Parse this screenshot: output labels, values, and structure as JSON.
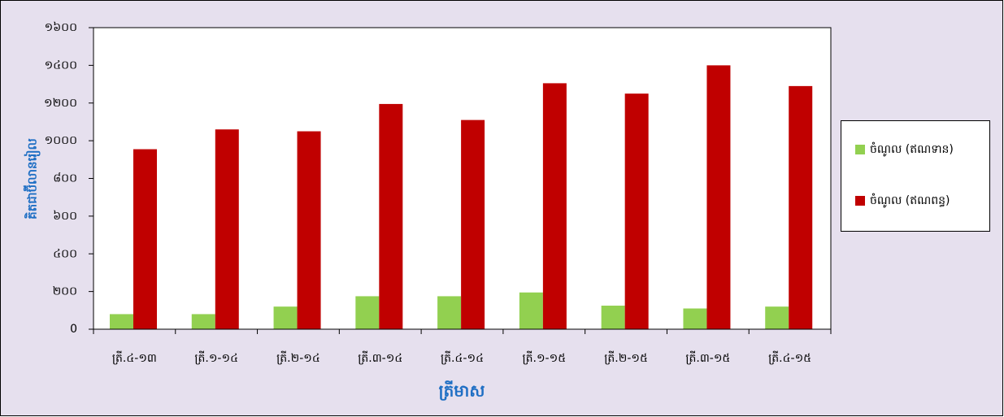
{
  "chart_data": {
    "type": "bar",
    "y_label": "គិតជាប៊ីលានរៀល",
    "x_label": "ត្រីមាស",
    "categories": [
      "ត្រី.៤-១៣",
      "ត្រី.១-១៤",
      "ត្រី.២-១៤",
      "ត្រី.៣-១៤",
      "ត្រី.៤-១៤",
      "ត្រី.១-១៥",
      "ត្រី.២-១៥",
      "ត្រី.៣-១៥",
      "ត្រី.៤-១៥"
    ],
    "series": [
      {
        "name": "ចំណូល (ឥណទាន)",
        "color": "#92d050",
        "values": [
          80,
          80,
          120,
          175,
          175,
          195,
          125,
          110,
          120
        ]
      },
      {
        "name": "ចំណូល (ឥណពន្ធ)",
        "color": "#c00000",
        "values": [
          955,
          1060,
          1050,
          1195,
          1110,
          1305,
          1250,
          1400,
          1290
        ]
      }
    ],
    "ylim": [
      0,
      1600
    ],
    "yticks": [
      {
        "value": 0,
        "label": "0"
      },
      {
        "value": 200,
        "label": "២០០"
      },
      {
        "value": 400,
        "label": "៤០០"
      },
      {
        "value": 600,
        "label": "៦០០"
      },
      {
        "value": 800,
        "label": "៨០០"
      },
      {
        "value": 1000,
        "label": "១០០០"
      },
      {
        "value": 1200,
        "label": "១២០០"
      },
      {
        "value": 1400,
        "label": "១៤០០"
      },
      {
        "value": 1600,
        "label": "១៦០០"
      }
    ],
    "grid": false,
    "legend": "right"
  }
}
